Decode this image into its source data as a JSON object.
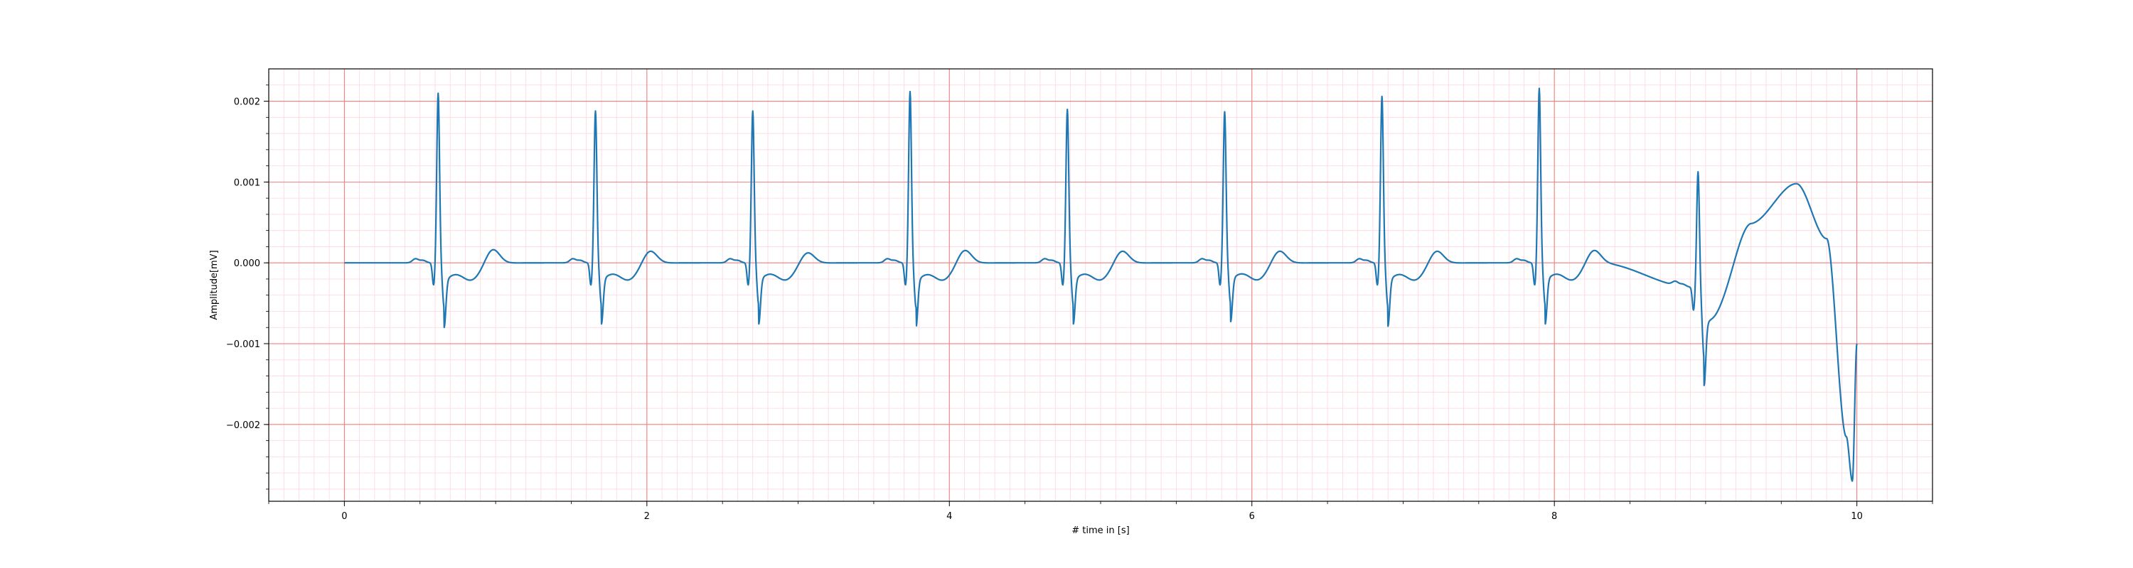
{
  "chart_data": {
    "type": "line",
    "title": "",
    "xlabel": "# time in [s]",
    "ylabel": "Amplitude[mV]",
    "xlim": [
      -0.5,
      10.5
    ],
    "ylim": [
      -0.00295,
      0.0024
    ],
    "x_major_ticks": [
      0,
      2,
      4,
      6,
      8,
      10
    ],
    "x_tick_labels": [
      "0",
      "2",
      "4",
      "6",
      "8",
      "10"
    ],
    "y_major_ticks": [
      0.002,
      0.001,
      0.0,
      -0.001,
      -0.002
    ],
    "y_tick_labels": [
      "0.002",
      "0.001",
      "0.000",
      "−0.001",
      "−0.002"
    ],
    "x_minor_step": 0.1,
    "y_minor_step": 0.0002,
    "grid": true,
    "major_grid_color": "#f08080",
    "minor_grid_color": "#ffd5dc",
    "series": [
      {
        "name": "",
        "color": "#1f77b4",
        "beats": [
          {
            "t": 0.62,
            "r": 0.0021,
            "s": -0.00055,
            "tw": 0.00018
          },
          {
            "t": 1.66,
            "r": 0.00188,
            "s": -0.00052,
            "tw": 0.00016
          },
          {
            "t": 2.7,
            "r": 0.00188,
            "s": -0.00052,
            "tw": 0.00014
          },
          {
            "t": 3.74,
            "r": 0.00212,
            "s": -0.00055,
            "tw": 0.00017
          },
          {
            "t": 4.78,
            "r": 0.0019,
            "s": -0.00052,
            "tw": 0.00016
          },
          {
            "t": 5.82,
            "r": 0.00187,
            "s": -0.0005,
            "tw": 0.00016
          },
          {
            "t": 6.86,
            "r": 0.00206,
            "s": -0.00054,
            "tw": 0.00016
          },
          {
            "t": 7.9,
            "r": 0.00216,
            "s": -0.00052,
            "tw": 0.00017
          },
          {
            "t": 8.95,
            "r": 0.00148,
            "s": -0.00075,
            "tw": 0.0
          }
        ],
        "baseline_drift": [
          {
            "x": 0.0,
            "y": 0.0
          },
          {
            "x": 8.3,
            "y": 0.0
          },
          {
            "x": 8.9,
            "y": -0.0003
          },
          {
            "x": 9.05,
            "y": -0.0005
          },
          {
            "x": 9.3,
            "y": 0.0005
          },
          {
            "x": 9.6,
            "y": 0.00098
          },
          {
            "x": 9.8,
            "y": 0.0003
          },
          {
            "x": 9.93,
            "y": -0.00215
          },
          {
            "x": 9.97,
            "y": -0.0027
          },
          {
            "x": 10.0,
            "y": -0.001
          }
        ],
        "x_start": 0.0,
        "x_end": 10.0
      }
    ]
  }
}
